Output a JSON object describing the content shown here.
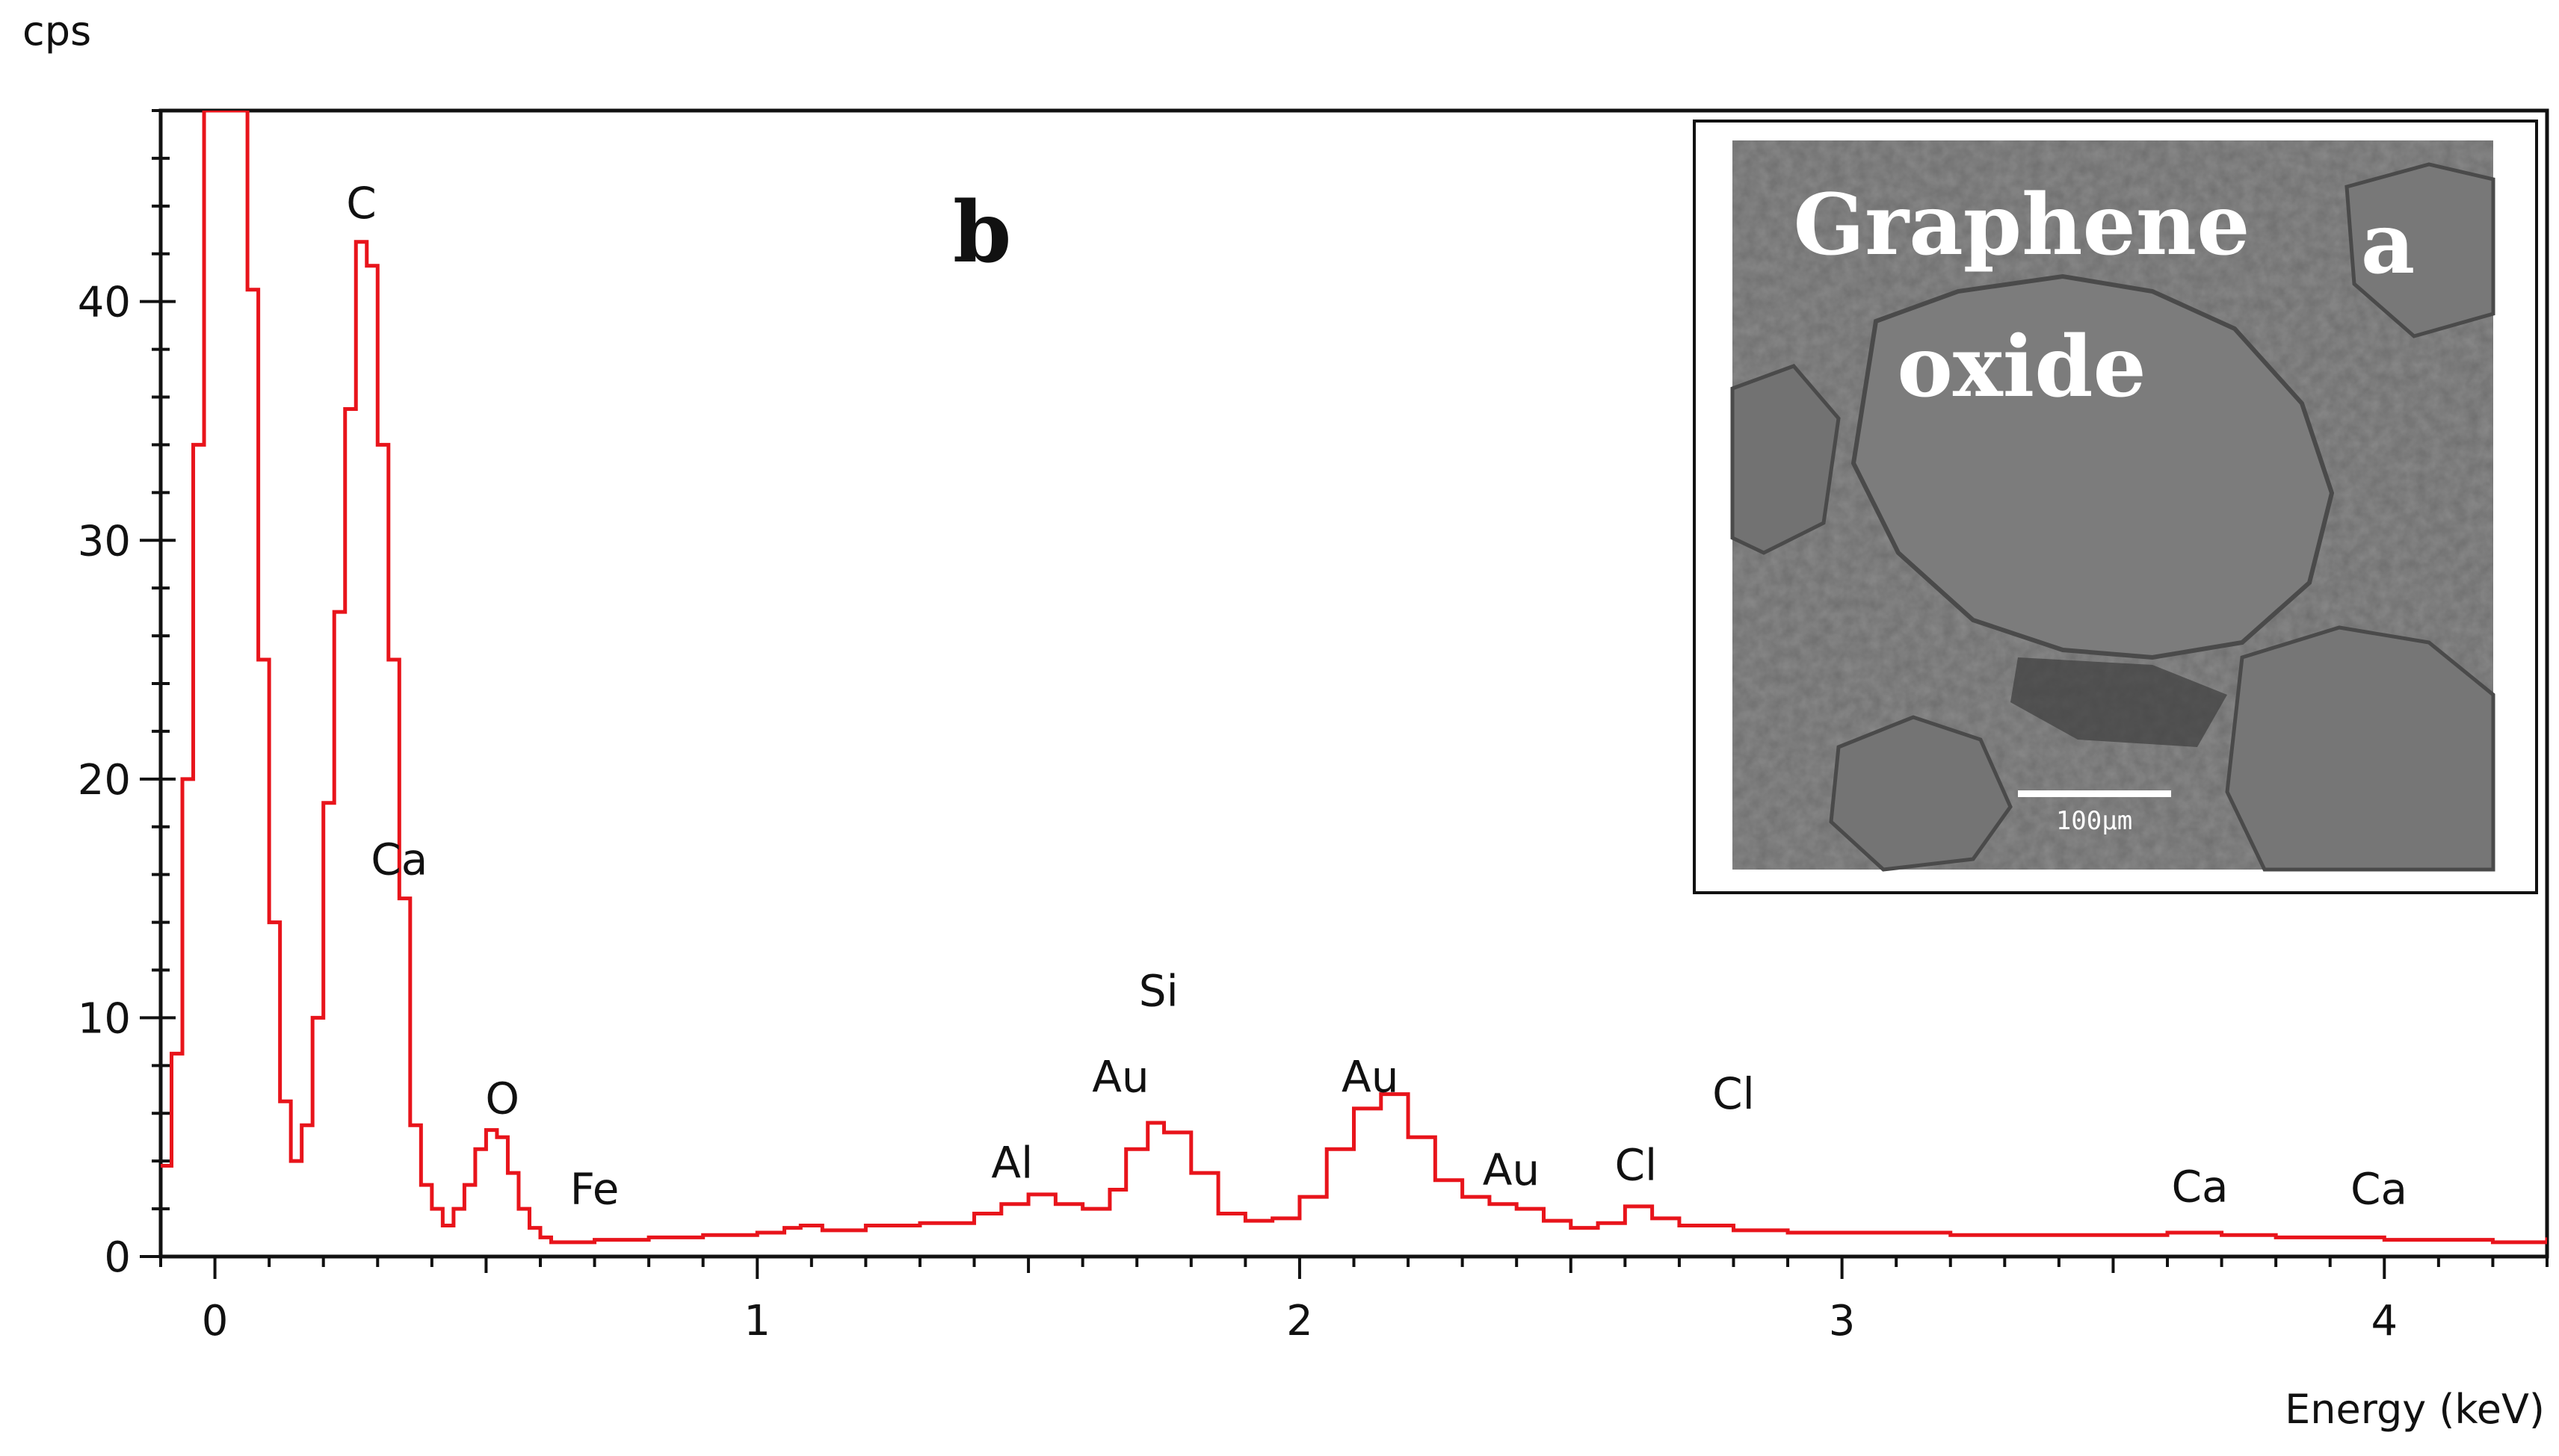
{
  "chart_data": {
    "type": "line",
    "title": "",
    "ylabel": "cps",
    "xlabel": "Energy (keV)",
    "xlim": [
      -0.1,
      4.3
    ],
    "ylim": [
      0,
      48
    ],
    "x_ticks": [
      "0",
      "1",
      "2",
      "3",
      "4"
    ],
    "y_ticks": [
      "0",
      "10",
      "20",
      "30",
      "40"
    ],
    "line_color": "#e8141b",
    "grid": false,
    "series": [
      {
        "x": [
          -0.1,
          -0.08,
          -0.06,
          -0.04,
          -0.02,
          0.0,
          0.02,
          0.04,
          0.06,
          0.08,
          0.1,
          0.12,
          0.14,
          0.16,
          0.18,
          0.2,
          0.22,
          0.24,
          0.26,
          0.28,
          0.3,
          0.32,
          0.34,
          0.36,
          0.38,
          0.4,
          0.42,
          0.44,
          0.46,
          0.48,
          0.5,
          0.52,
          0.54,
          0.56,
          0.58,
          0.6,
          0.62,
          0.64,
          0.7,
          0.8,
          0.9,
          1.0,
          1.05,
          1.08,
          1.12,
          1.2,
          1.3,
          1.4,
          1.45,
          1.5,
          1.55,
          1.6,
          1.65,
          1.68,
          1.72,
          1.75,
          1.8,
          1.85,
          1.9,
          1.95,
          2.0,
          2.05,
          2.1,
          2.15,
          2.2,
          2.25,
          2.3,
          2.35,
          2.4,
          2.45,
          2.5,
          2.55,
          2.6,
          2.65,
          2.7,
          2.8,
          2.9,
          3.0,
          3.2,
          3.4,
          3.6,
          3.7,
          3.8,
          4.0,
          4.2,
          4.3
        ],
        "y": [
          3.8,
          8.5,
          20,
          34,
          48,
          48,
          48,
          48,
          40.5,
          25,
          14,
          6.5,
          4.0,
          5.5,
          10,
          19,
          27,
          35.5,
          42.5,
          41.5,
          34,
          25,
          15,
          5.5,
          3.0,
          2.0,
          1.3,
          2.0,
          3.0,
          4.5,
          5.3,
          5.0,
          3.5,
          2.0,
          1.2,
          0.8,
          0.6,
          0.6,
          0.7,
          0.8,
          0.9,
          1.0,
          1.2,
          1.3,
          1.1,
          1.3,
          1.4,
          1.8,
          2.2,
          2.6,
          2.2,
          2.0,
          2.8,
          4.5,
          5.6,
          5.2,
          3.5,
          1.8,
          1.5,
          1.6,
          2.5,
          4.5,
          6.2,
          6.8,
          5.0,
          3.2,
          2.5,
          2.2,
          2.0,
          1.5,
          1.2,
          1.4,
          2.1,
          1.6,
          1.3,
          1.1,
          1.0,
          1.0,
          0.9,
          0.9,
          1.0,
          0.9,
          0.8,
          0.7,
          0.6,
          0.8
        ]
      }
    ],
    "annotations": [
      {
        "text": "C",
        "x": 0.27,
        "y": 43.5
      },
      {
        "text": "Ca",
        "x": 0.34,
        "y": 16.0
      },
      {
        "text": "O",
        "x": 0.53,
        "y": 6.0
      },
      {
        "text": "Fe",
        "x": 0.7,
        "y": 2.2
      },
      {
        "text": "Al",
        "x": 1.47,
        "y": 3.3
      },
      {
        "text": "Au",
        "x": 1.67,
        "y": 6.9
      },
      {
        "text": "Si",
        "x": 1.74,
        "y": 10.5
      },
      {
        "text": "Au",
        "x": 2.13,
        "y": 6.9
      },
      {
        "text": "Au",
        "x": 2.39,
        "y": 3.0
      },
      {
        "text": "Cl",
        "x": 2.62,
        "y": 3.2
      },
      {
        "text": "Cl",
        "x": 2.8,
        "y": 6.2
      },
      {
        "text": "Ca",
        "x": 3.66,
        "y": 2.3
      },
      {
        "text": "Ca",
        "x": 3.99,
        "y": 2.2
      }
    ]
  },
  "panel_label": "b",
  "inset": {
    "label": "a",
    "title_line1": "Graphene",
    "title_line2": "oxide",
    "scale_bar": "100µm"
  }
}
